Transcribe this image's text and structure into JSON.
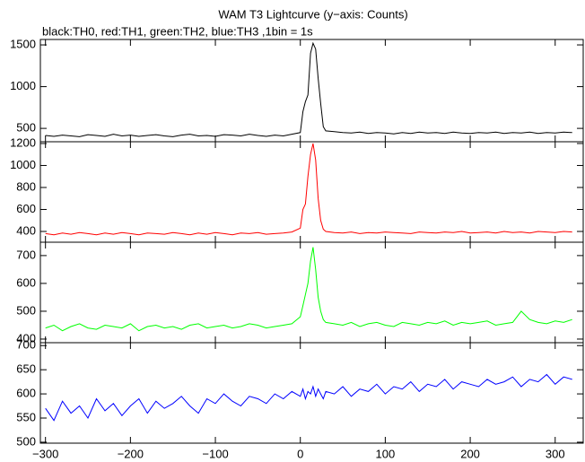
{
  "title": "WAM T3 Lightcurve (y−axis: Counts)",
  "subtitle": "black:TH0, red:TH1, green:TH2, blue:TH3 ,1bin = 1s",
  "chart_data": [
    {
      "type": "line",
      "color": "#000000",
      "x": [
        -300,
        -290,
        -280,
        -270,
        -260,
        -250,
        -240,
        -230,
        -220,
        -210,
        -200,
        -190,
        -180,
        -170,
        -160,
        -150,
        -140,
        -130,
        -120,
        -110,
        -100,
        -90,
        -80,
        -70,
        -60,
        -50,
        -40,
        -30,
        -20,
        -10,
        0,
        3,
        6,
        9,
        12,
        15,
        18,
        21,
        24,
        27,
        30,
        40,
        50,
        60,
        70,
        80,
        90,
        100,
        110,
        120,
        130,
        140,
        150,
        160,
        170,
        180,
        190,
        200,
        210,
        220,
        230,
        240,
        250,
        260,
        270,
        280,
        290,
        300,
        310,
        320
      ],
      "values": [
        415,
        405,
        420,
        410,
        400,
        425,
        415,
        405,
        430,
        410,
        420,
        405,
        415,
        425,
        410,
        400,
        420,
        430,
        410,
        415,
        405,
        425,
        420,
        410,
        430,
        415,
        405,
        420,
        410,
        430,
        450,
        700,
        820,
        900,
        1400,
        1520,
        1450,
        1100,
        800,
        520,
        470,
        460,
        450,
        445,
        455,
        440,
        450,
        445,
        435,
        450,
        440,
        455,
        445,
        450,
        440,
        455,
        445,
        440,
        450,
        445,
        455,
        440,
        450,
        445,
        455,
        440,
        450,
        445,
        455,
        450
      ],
      "xlim": [
        -306,
        333
      ],
      "ylim": [
        340,
        1565
      ],
      "yticks": [
        500,
        1000,
        1500
      ]
    },
    {
      "type": "line",
      "color": "#ff0000",
      "x": [
        -300,
        -290,
        -280,
        -270,
        -260,
        -250,
        -240,
        -230,
        -220,
        -210,
        -200,
        -190,
        -180,
        -170,
        -160,
        -150,
        -140,
        -130,
        -120,
        -110,
        -100,
        -90,
        -80,
        -70,
        -60,
        -50,
        -40,
        -30,
        -20,
        -10,
        0,
        3,
        6,
        9,
        12,
        15,
        18,
        21,
        24,
        27,
        30,
        40,
        50,
        60,
        70,
        80,
        90,
        100,
        110,
        120,
        130,
        140,
        150,
        160,
        170,
        180,
        190,
        200,
        210,
        220,
        230,
        240,
        250,
        260,
        270,
        280,
        290,
        300,
        310,
        320
      ],
      "values": [
        380,
        370,
        385,
        375,
        390,
        380,
        370,
        385,
        375,
        390,
        380,
        370,
        385,
        380,
        375,
        390,
        380,
        370,
        385,
        375,
        390,
        380,
        370,
        385,
        380,
        390,
        375,
        380,
        385,
        395,
        430,
        600,
        650,
        900,
        1100,
        1200,
        1050,
        700,
        500,
        420,
        400,
        390,
        385,
        395,
        380,
        390,
        385,
        395,
        390,
        385,
        380,
        395,
        390,
        385,
        395,
        390,
        400,
        385,
        390,
        395,
        385,
        400,
        390,
        395,
        385,
        400,
        395,
        390,
        400,
        395
      ],
      "xlim": [
        -306,
        333
      ],
      "ylim": [
        302,
        1216
      ],
      "yticks": [
        400,
        600,
        800,
        1000,
        1200
      ]
    },
    {
      "type": "line",
      "color": "#00ff00",
      "x": [
        -300,
        -290,
        -280,
        -270,
        -260,
        -250,
        -240,
        -230,
        -220,
        -210,
        -200,
        -190,
        -180,
        -170,
        -160,
        -150,
        -140,
        -130,
        -120,
        -110,
        -100,
        -90,
        -80,
        -70,
        -60,
        -50,
        -40,
        -30,
        -20,
        -10,
        0,
        3,
        6,
        9,
        12,
        15,
        18,
        21,
        24,
        27,
        30,
        40,
        50,
        60,
        70,
        80,
        90,
        100,
        110,
        120,
        130,
        140,
        150,
        160,
        170,
        180,
        190,
        200,
        210,
        220,
        230,
        240,
        250,
        260,
        270,
        280,
        290,
        300,
        310,
        320
      ],
      "values": [
        440,
        450,
        430,
        445,
        455,
        440,
        435,
        450,
        445,
        440,
        455,
        430,
        445,
        450,
        440,
        445,
        435,
        450,
        455,
        440,
        445,
        450,
        440,
        445,
        455,
        450,
        440,
        445,
        450,
        455,
        480,
        520,
        560,
        600,
        680,
        730,
        650,
        550,
        500,
        470,
        460,
        455,
        450,
        460,
        445,
        455,
        460,
        450,
        445,
        460,
        455,
        450,
        460,
        455,
        465,
        450,
        460,
        455,
        460,
        465,
        450,
        455,
        460,
        500,
        470,
        460,
        455,
        465,
        460,
        470
      ],
      "xlim": [
        -306,
        333
      ],
      "ylim": [
        387,
        748
      ],
      "yticks": [
        400,
        500,
        600,
        700
      ]
    },
    {
      "type": "line",
      "color": "#0000ff",
      "x": [
        -300,
        -290,
        -280,
        -270,
        -260,
        -250,
        -240,
        -230,
        -220,
        -210,
        -200,
        -190,
        -180,
        -170,
        -160,
        -150,
        -140,
        -130,
        -120,
        -110,
        -100,
        -90,
        -80,
        -70,
        -60,
        -50,
        -40,
        -30,
        -20,
        -10,
        0,
        3,
        6,
        9,
        12,
        15,
        18,
        21,
        24,
        27,
        30,
        40,
        50,
        60,
        70,
        80,
        90,
        100,
        110,
        120,
        130,
        140,
        150,
        160,
        170,
        180,
        190,
        200,
        210,
        220,
        230,
        240,
        250,
        260,
        270,
        280,
        290,
        300,
        310,
        320
      ],
      "values": [
        570,
        545,
        585,
        560,
        575,
        550,
        590,
        565,
        580,
        555,
        575,
        590,
        560,
        585,
        570,
        580,
        595,
        575,
        560,
        590,
        580,
        600,
        585,
        575,
        595,
        590,
        580,
        600,
        590,
        605,
        595,
        610,
        590,
        605,
        600,
        615,
        595,
        610,
        600,
        590,
        605,
        600,
        615,
        595,
        610,
        605,
        620,
        600,
        615,
        610,
        625,
        605,
        620,
        615,
        630,
        610,
        625,
        620,
        615,
        630,
        620,
        625,
        635,
        615,
        630,
        625,
        640,
        620,
        635,
        630
      ],
      "xlim": [
        -306,
        333
      ],
      "ylim": [
        498,
        706
      ],
      "yticks": [
        500,
        550,
        600,
        650,
        700
      ],
      "xticks": [
        {
          "value": -300,
          "label": "−300"
        },
        {
          "value": -200,
          "label": "−200"
        },
        {
          "value": -100,
          "label": "−100"
        },
        0,
        100,
        200,
        300
      ]
    }
  ]
}
